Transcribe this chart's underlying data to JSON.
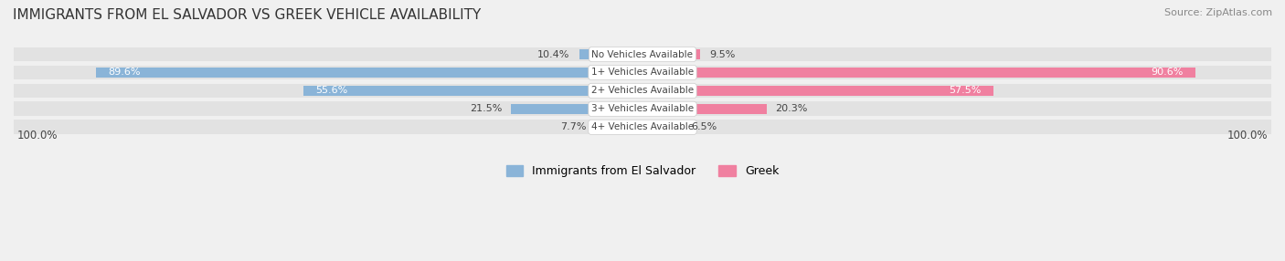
{
  "title": "IMMIGRANTS FROM EL SALVADOR VS GREEK VEHICLE AVAILABILITY",
  "source": "Source: ZipAtlas.com",
  "categories": [
    "No Vehicles Available",
    "1+ Vehicles Available",
    "2+ Vehicles Available",
    "3+ Vehicles Available",
    "4+ Vehicles Available"
  ],
  "salvador_values": [
    10.4,
    89.6,
    55.6,
    21.5,
    7.7
  ],
  "greek_values": [
    9.5,
    90.6,
    57.5,
    20.3,
    6.5
  ],
  "salvador_color": "#8ab4d8",
  "greek_color": "#f080a0",
  "salvador_label": "Immigrants from El Salvador",
  "greek_label": "Greek",
  "bar_height": 0.55,
  "background_color": "#f0f0f0",
  "axis_label_left": "100.0%",
  "axis_label_right": "100.0%",
  "max_val": 100
}
